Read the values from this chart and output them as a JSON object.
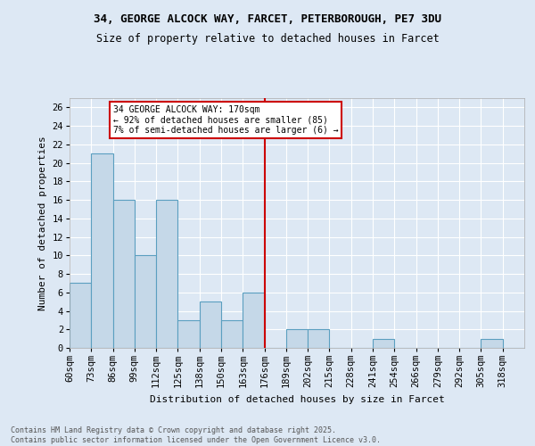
{
  "title1": "34, GEORGE ALCOCK WAY, FARCET, PETERBOROUGH, PE7 3DU",
  "title2": "Size of property relative to detached houses in Farcet",
  "xlabel": "Distribution of detached houses by size in Farcet",
  "ylabel": "Number of detached properties",
  "footnote1": "Contains HM Land Registry data © Crown copyright and database right 2025.",
  "footnote2": "Contains public sector information licensed under the Open Government Licence v3.0.",
  "bin_labels": [
    "60sqm",
    "73sqm",
    "86sqm",
    "99sqm",
    "112sqm",
    "125sqm",
    "138sqm",
    "150sqm",
    "163sqm",
    "176sqm",
    "189sqm",
    "202sqm",
    "215sqm",
    "228sqm",
    "241sqm",
    "254sqm",
    "266sqm",
    "279sqm",
    "292sqm",
    "305sqm",
    "318sqm"
  ],
  "counts": [
    7,
    21,
    16,
    10,
    16,
    3,
    5,
    3,
    6,
    0,
    2,
    2,
    0,
    0,
    1,
    0,
    0,
    0,
    0,
    1,
    0
  ],
  "bar_color": "#c5d8e8",
  "bar_edge_color": "#5b9fc0",
  "vline_x": 9,
  "vline_color": "#cc0000",
  "annotation_text": "34 GEORGE ALCOCK WAY: 170sqm\n← 92% of detached houses are smaller (85)\n7% of semi-detached houses are larger (6) →",
  "annotation_box_color": "#ffffff",
  "annotation_box_edge": "#cc0000",
  "bg_color": "#dde8f4",
  "plot_bg_color": "#dde8f4",
  "ylim": [
    0,
    27
  ],
  "yticks": [
    0,
    2,
    4,
    6,
    8,
    10,
    12,
    14,
    16,
    18,
    20,
    22,
    24,
    26
  ],
  "grid_color": "#ffffff",
  "title1_fontsize": 9,
  "title2_fontsize": 8.5,
  "ylabel_fontsize": 8,
  "xlabel_fontsize": 8,
  "tick_fontsize": 7.5,
  "annot_fontsize": 7,
  "footnote_fontsize": 6
}
